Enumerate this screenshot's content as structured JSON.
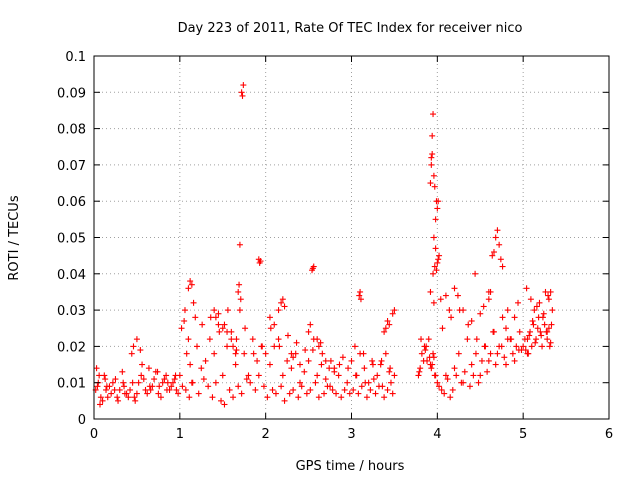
{
  "chart_data": {
    "type": "scatter",
    "title": "Day 223 of 2011, Rate Of TEC Index for receiver nico",
    "xlabel": "GPS time / hours",
    "ylabel": "ROTI / TECUs",
    "xlim": [
      0,
      6
    ],
    "ylim": [
      0,
      0.1
    ],
    "x_ticks": [
      "0",
      "1",
      "2",
      "3",
      "4",
      "5",
      "6"
    ],
    "y_ticks": [
      "0",
      "0.01",
      "0.02",
      "0.03",
      "0.04",
      "0.05",
      "0.06",
      "0.07",
      "0.08",
      "0.09",
      "0.1"
    ],
    "grid": true,
    "marker": "+",
    "color": "#ff0000",
    "series": [
      {
        "x": [
          0.02,
          0.05,
          0.08,
          0.12,
          0.15,
          0.2,
          0.25,
          0.3,
          0.35,
          0.4,
          0.45,
          0.5,
          0.55,
          0.6,
          0.65,
          0.7,
          0.75,
          0.8,
          0.85,
          0.9,
          0.95,
          0.03,
          0.1,
          0.18,
          0.27,
          0.33,
          0.42,
          0.48,
          0.52,
          0.58,
          0.62,
          0.68,
          0.72,
          0.78,
          0.82,
          0.88,
          0.92,
          0.98,
          0.06,
          0.14,
          0.22,
          0.36,
          0.44,
          0.46,
          0.5,
          0.54,
          0.07,
          0.16,
          0.28,
          0.38,
          0.56,
          0.64,
          0.74,
          0.84,
          0.94,
          0.04,
          0.13,
          0.24,
          0.34,
          0.47,
          0.66,
          0.76,
          0.86,
          0.96,
          1.0,
          1.02,
          1.05,
          1.08,
          1.1,
          1.12,
          1.15,
          1.18,
          1.2,
          1.25,
          1.3,
          1.35,
          1.4,
          1.45,
          1.5,
          1.55,
          1.6,
          1.65,
          1.7,
          1.75,
          1.8,
          1.85,
          1.9,
          1.95,
          1.03,
          1.07,
          1.11,
          1.14,
          1.22,
          1.28,
          1.33,
          1.38,
          1.42,
          1.48,
          1.52,
          1.58,
          1.62,
          1.68,
          1.72,
          1.78,
          1.82,
          1.88,
          1.92,
          1.98,
          1.06,
          1.16,
          1.26,
          1.36,
          1.46,
          1.56,
          1.66,
          1.76,
          1.86,
          1.96,
          1.72,
          1.73,
          1.74,
          1.7,
          1.68,
          1.69,
          1.71,
          1.92,
          1.93,
          1.94,
          1.1,
          1.12,
          1.14,
          1.4,
          1.42,
          1.45,
          1.5,
          1.52,
          1.55,
          1.6,
          1.62,
          1.65,
          1.66,
          2.0,
          2.05,
          2.1,
          2.15,
          2.2,
          2.25,
          2.3,
          2.35,
          2.4,
          2.45,
          2.5,
          2.55,
          2.6,
          2.65,
          2.7,
          2.75,
          2.8,
          2.85,
          2.9,
          2.95,
          2.02,
          2.08,
          2.12,
          2.18,
          2.22,
          2.28,
          2.32,
          2.38,
          2.42,
          2.48,
          2.52,
          2.58,
          2.62,
          2.68,
          2.72,
          2.78,
          2.82,
          2.88,
          2.92,
          2.98,
          2.06,
          2.16,
          2.26,
          2.36,
          2.46,
          2.56,
          2.66,
          2.76,
          2.86,
          2.96,
          2.15,
          2.18,
          2.2,
          2.22,
          2.54,
          2.55,
          2.56,
          2.5,
          2.52,
          2.6,
          2.62,
          2.64,
          2.3,
          2.32,
          2.05,
          2.1,
          2.4,
          2.7,
          2.74,
          2.8,
          3.0,
          3.05,
          3.1,
          3.15,
          3.2,
          3.25,
          3.3,
          3.35,
          3.4,
          3.45,
          3.5,
          3.02,
          3.08,
          3.12,
          3.18,
          3.22,
          3.28,
          3.32,
          3.38,
          3.42,
          3.48,
          3.06,
          3.16,
          3.26,
          3.36,
          3.46,
          3.04,
          3.14,
          3.24,
          3.34,
          3.44,
          3.09,
          3.1,
          3.11,
          3.4,
          3.42,
          3.44,
          3.38,
          3.48,
          3.5,
          3.78,
          3.8,
          3.82,
          3.85,
          3.88,
          3.9,
          3.92,
          3.95,
          3.98,
          3.79,
          3.84,
          3.87,
          3.93,
          3.96,
          3.81,
          3.86,
          3.91,
          3.94,
          3.97,
          3.92,
          3.93,
          3.94,
          3.95,
          3.96,
          3.97,
          3.98,
          3.99,
          4.0,
          4.01,
          4.02,
          3.93,
          3.94,
          3.96,
          3.98,
          4.0,
          3.95,
          3.97,
          3.99,
          4.01,
          3.92,
          3.96,
          4.0,
          4.05,
          4.1,
          4.15,
          4.2,
          4.25,
          4.3,
          4.35,
          4.4,
          4.45,
          4.5,
          4.55,
          4.6,
          4.65,
          4.7,
          4.75,
          4.8,
          4.85,
          4.9,
          4.95,
          4.02,
          4.08,
          4.12,
          4.18,
          4.22,
          4.28,
          4.32,
          4.38,
          4.42,
          4.48,
          4.52,
          4.58,
          4.62,
          4.68,
          4.72,
          4.78,
          4.82,
          4.88,
          4.92,
          4.98,
          4.06,
          4.16,
          4.26,
          4.36,
          4.46,
          4.56,
          4.66,
          4.76,
          4.86,
          4.96,
          4.04,
          4.1,
          4.14,
          4.2,
          4.24,
          4.3,
          4.4,
          4.44,
          4.5,
          4.54,
          4.6,
          4.64,
          4.66,
          4.68,
          4.7,
          4.72,
          4.74,
          4.76,
          4.6,
          4.62,
          4.8,
          4.82,
          4.9,
          4.94,
          5.0,
          5.02,
          5.05,
          5.08,
          5.1,
          5.12,
          5.15,
          5.18,
          5.2,
          5.22,
          5.25,
          5.28,
          5.3,
          5.32,
          5.03,
          5.07,
          5.11,
          5.14,
          5.17,
          5.21,
          5.24,
          5.27,
          5.31,
          5.33,
          5.06,
          5.13,
          5.19,
          5.26,
          5.29,
          5.04,
          5.09,
          5.16,
          5.23,
          5.3,
          5.32,
          5.34,
          5.05,
          5.28
        ],
        "y": [
          0.008,
          0.01,
          0.006,
          0.012,
          0.009,
          0.007,
          0.011,
          0.008,
          0.009,
          0.006,
          0.01,
          0.007,
          0.012,
          0.008,
          0.009,
          0.011,
          0.007,
          0.01,
          0.008,
          0.009,
          0.012,
          0.014,
          0.005,
          0.009,
          0.006,
          0.013,
          0.008,
          0.005,
          0.01,
          0.011,
          0.007,
          0.009,
          0.013,
          0.006,
          0.011,
          0.008,
          0.01,
          0.007,
          0.012,
          0.008,
          0.01,
          0.007,
          0.018,
          0.02,
          0.022,
          0.019,
          0.004,
          0.006,
          0.005,
          0.007,
          0.015,
          0.014,
          0.013,
          0.012,
          0.011,
          0.009,
          0.011,
          0.008,
          0.01,
          0.006,
          0.008,
          0.009,
          0.01,
          0.008,
          0.012,
          0.025,
          0.027,
          0.018,
          0.022,
          0.015,
          0.01,
          0.028,
          0.02,
          0.014,
          0.016,
          0.022,
          0.018,
          0.026,
          0.012,
          0.02,
          0.024,
          0.015,
          0.03,
          0.018,
          0.012,
          0.022,
          0.016,
          0.02,
          0.009,
          0.008,
          0.006,
          0.01,
          0.007,
          0.011,
          0.009,
          0.006,
          0.01,
          0.005,
          0.004,
          0.008,
          0.006,
          0.009,
          0.007,
          0.011,
          0.01,
          0.008,
          0.012,
          0.009,
          0.03,
          0.032,
          0.026,
          0.028,
          0.024,
          0.03,
          0.022,
          0.025,
          0.018,
          0.02,
          0.09,
          0.089,
          0.092,
          0.048,
          0.035,
          0.037,
          0.033,
          0.044,
          0.043,
          0.0435,
          0.036,
          0.038,
          0.037,
          0.03,
          0.028,
          0.029,
          0.025,
          0.026,
          0.024,
          0.022,
          0.02,
          0.018,
          0.019,
          0.018,
          0.015,
          0.02,
          0.022,
          0.012,
          0.016,
          0.014,
          0.018,
          0.01,
          0.013,
          0.016,
          0.019,
          0.012,
          0.015,
          0.011,
          0.009,
          0.014,
          0.012,
          0.017,
          0.01,
          0.006,
          0.008,
          0.007,
          0.009,
          0.005,
          0.007,
          0.008,
          0.006,
          0.009,
          0.007,
          0.008,
          0.01,
          0.006,
          0.007,
          0.009,
          0.008,
          0.007,
          0.006,
          0.008,
          0.007,
          0.025,
          0.02,
          0.023,
          0.021,
          0.019,
          0.022,
          0.018,
          0.016,
          0.015,
          0.014,
          0.03,
          0.032,
          0.033,
          0.031,
          0.041,
          0.0415,
          0.042,
          0.024,
          0.026,
          0.022,
          0.02,
          0.021,
          0.018,
          0.017,
          0.028,
          0.026,
          0.015,
          0.016,
          0.014,
          0.013,
          0.016,
          0.012,
          0.018,
          0.014,
          0.01,
          0.015,
          0.012,
          0.016,
          0.018,
          0.014,
          0.012,
          0.008,
          0.007,
          0.009,
          0.006,
          0.008,
          0.007,
          0.009,
          0.006,
          0.008,
          0.007,
          0.012,
          0.01,
          0.011,
          0.009,
          0.01,
          0.02,
          0.018,
          0.016,
          0.015,
          0.013,
          0.034,
          0.035,
          0.033,
          0.025,
          0.027,
          0.026,
          0.024,
          0.029,
          0.03,
          0.012,
          0.014,
          0.018,
          0.02,
          0.016,
          0.022,
          0.015,
          0.018,
          0.012,
          0.013,
          0.016,
          0.02,
          0.014,
          0.017,
          0.022,
          0.019,
          0.017,
          0.015,
          0.012,
          0.065,
          0.07,
          0.078,
          0.084,
          0.067,
          0.064,
          0.055,
          0.06,
          0.058,
          0.06,
          0.045,
          0.072,
          0.073,
          0.05,
          0.047,
          0.043,
          0.04,
          0.042,
          0.041,
          0.044,
          0.035,
          0.032,
          0.01,
          0.008,
          0.012,
          0.006,
          0.014,
          0.018,
          0.01,
          0.022,
          0.015,
          0.018,
          0.012,
          0.02,
          0.016,
          0.024,
          0.018,
          0.02,
          0.015,
          0.022,
          0.016,
          0.019,
          0.009,
          0.007,
          0.011,
          0.008,
          0.012,
          0.01,
          0.013,
          0.009,
          0.012,
          0.01,
          0.016,
          0.013,
          0.018,
          0.015,
          0.02,
          0.017,
          0.022,
          0.018,
          0.02,
          0.019,
          0.025,
          0.028,
          0.03,
          0.026,
          0.022,
          0.02,
          0.024,
          0.028,
          0.022,
          0.024,
          0.033,
          0.034,
          0.03,
          0.036,
          0.034,
          0.03,
          0.027,
          0.04,
          0.029,
          0.031,
          0.035,
          0.045,
          0.046,
          0.05,
          0.052,
          0.048,
          0.044,
          0.042,
          0.033,
          0.035,
          0.025,
          0.03,
          0.028,
          0.032,
          0.02,
          0.022,
          0.018,
          0.024,
          0.02,
          0.026,
          0.022,
          0.028,
          0.024,
          0.02,
          0.026,
          0.022,
          0.025,
          0.021,
          0.019,
          0.023,
          0.027,
          0.021,
          0.025,
          0.023,
          0.029,
          0.024,
          0.02,
          0.026,
          0.018,
          0.03,
          0.032,
          0.035,
          0.034,
          0.036,
          0.033,
          0.031,
          0.028,
          0.033,
          0.035,
          0.03,
          0.022,
          0.024
        ]
      }
    ]
  }
}
